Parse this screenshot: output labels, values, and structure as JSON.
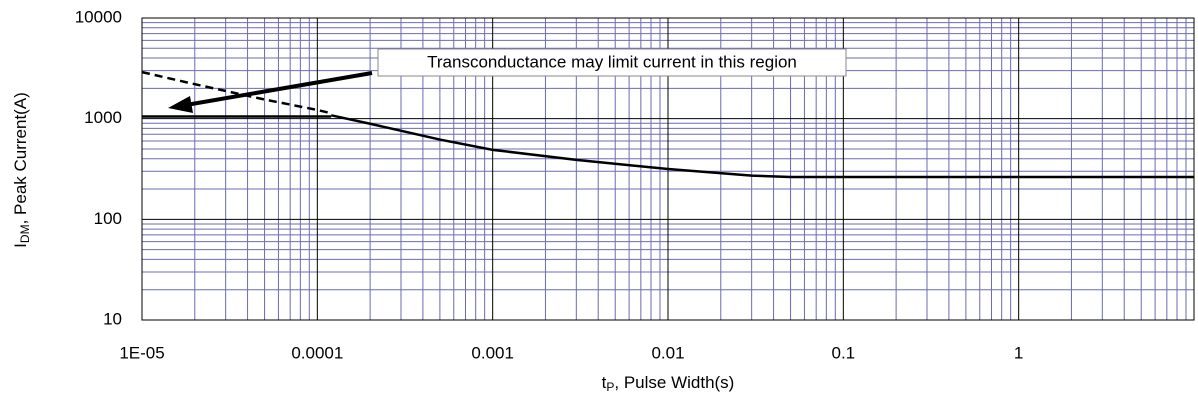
{
  "chart_data": {
    "type": "line",
    "xscale": "log",
    "yscale": "log",
    "xlim": [
      1e-05,
      10
    ],
    "ylim": [
      10,
      10000
    ],
    "xticks": [
      {
        "value": 1e-05,
        "label": "1E-05"
      },
      0.0001,
      0.001,
      0.01,
      0.1,
      1
    ],
    "yticks": [
      10,
      100,
      1000,
      10000
    ],
    "grid": true,
    "minor_grid": true,
    "grid_color": "#6b6bb5",
    "major_grid_color": "#000000",
    "xlabel": {
      "main": "t",
      "sub": "P",
      "rest": ", Pulse Width(s)"
    },
    "ylabel": {
      "main": "I",
      "sub": "DM",
      "rest": ", Peak Current(A)"
    },
    "annotation": "Transconductance may limit current in this region",
    "series": [
      {
        "color": "#000000",
        "style": "dashed",
        "x": [
          1e-05,
          2e-05,
          5e-05,
          0.0001,
          0.00012
        ],
        "values": [
          2900,
          2200,
          1550,
          1220,
          1130
        ]
      },
      {
        "color": "#000000",
        "style": "solid",
        "x": [
          1e-05,
          0.00012
        ],
        "values": [
          1050,
          1050
        ]
      },
      {
        "color": "#000000",
        "style": "solid",
        "x": [
          0.00012,
          0.0002,
          0.0005,
          0.001,
          0.003,
          0.01,
          0.03,
          0.05,
          10
        ],
        "values": [
          1080,
          890,
          620,
          490,
          390,
          316,
          272,
          263,
          263
        ]
      }
    ]
  }
}
